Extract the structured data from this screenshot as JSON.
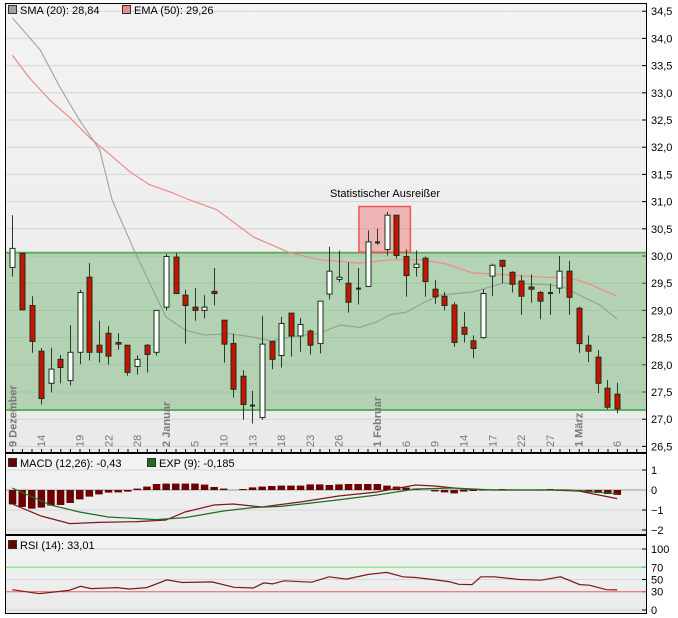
{
  "legend": {
    "sma": "SMA (20): 28,84",
    "ema": "EMA (50): 29,26",
    "macd": "MACD (12,26): -0,43",
    "exp": "EXP (9): -0,185",
    "rsi": "RSI (14): 33,01"
  },
  "colors": {
    "sma": "#a0a0a0",
    "ema": "#f08a8a",
    "band_fill": "#b3d3b3",
    "band_line": "#5fae5f",
    "up_body": "#ffffff",
    "down_body": "#cc1100",
    "candle_outline": "#143214",
    "macd": "#6b0000",
    "exp": "#1e6e1e",
    "rsi": "#6b0000",
    "rsi_upper": "#66ee66",
    "rsi_lower": "#ee6666",
    "outlier": "#f08080",
    "outlier_label": "#6b6bff"
  },
  "chart_data": [
    {
      "type": "candlestick",
      "ylim": [
        26.5,
        34.5
      ],
      "y_ticks": [
        "34,5",
        "34,0",
        "33,5",
        "33,0",
        "32,5",
        "32,0",
        "31,5",
        "31,0",
        "30,5",
        "30,0",
        "29,5",
        "29,0",
        "28,5",
        "28,0",
        "27,5",
        "27,0",
        "26,5"
      ],
      "y_tick_values": [
        34.5,
        34.0,
        33.5,
        33.0,
        32.5,
        32.0,
        31.5,
        31.0,
        30.5,
        30.0,
        29.5,
        29.0,
        28.5,
        28.0,
        27.5,
        27.0,
        26.5
      ],
      "grid": true,
      "x_labels": [
        {
          "label": "9 Dezember",
          "i": 0,
          "month": true
        },
        {
          "label": "14",
          "i": 3
        },
        {
          "label": "19",
          "i": 7
        },
        {
          "label": "22",
          "i": 10
        },
        {
          "label": "28",
          "i": 13
        },
        {
          "label": "2 Januar",
          "i": 16,
          "month": true
        },
        {
          "label": "5",
          "i": 19
        },
        {
          "label": "10",
          "i": 22
        },
        {
          "label": "13",
          "i": 25
        },
        {
          "label": "18",
          "i": 28
        },
        {
          "label": "23",
          "i": 31
        },
        {
          "label": "26",
          "i": 34
        },
        {
          "label": "1 Februar",
          "i": 38,
          "month": true
        },
        {
          "label": "6",
          "i": 41
        },
        {
          "label": "9",
          "i": 44
        },
        {
          "label": "14",
          "i": 47
        },
        {
          "label": "17",
          "i": 50
        },
        {
          "label": "22",
          "i": 53
        },
        {
          "label": "27",
          "i": 56
        },
        {
          "label": "1 März",
          "i": 59,
          "month": true
        },
        {
          "label": "6",
          "i": 63
        }
      ],
      "ohlc_fields": [
        "open",
        "high",
        "low",
        "close"
      ],
      "ohlc": [
        [
          29.79,
          30.75,
          29.62,
          30.14
        ],
        [
          30.05,
          30.06,
          29.0,
          29.01
        ],
        [
          29.09,
          29.26,
          28.22,
          28.43
        ],
        [
          28.25,
          28.31,
          27.27,
          27.38
        ],
        [
          27.66,
          28.31,
          27.49,
          27.92
        ],
        [
          28.1,
          28.18,
          27.66,
          27.95
        ],
        [
          27.71,
          28.73,
          27.62,
          28.23
        ],
        [
          28.23,
          29.38,
          28.01,
          29.33
        ],
        [
          29.61,
          29.87,
          28.08,
          28.23
        ],
        [
          28.36,
          28.81,
          28.04,
          28.23
        ],
        [
          28.58,
          28.71,
          28.0,
          28.16
        ],
        [
          28.41,
          28.58,
          28.28,
          28.38
        ],
        [
          28.36,
          28.36,
          27.8,
          27.86
        ],
        [
          27.97,
          28.17,
          27.82,
          28.1
        ],
        [
          28.36,
          28.38,
          27.86,
          28.19
        ],
        [
          28.23,
          29.01,
          28.17,
          29.0
        ],
        [
          29.06,
          30.04,
          29.0,
          29.99
        ],
        [
          29.98,
          30.06,
          29.31,
          29.31
        ],
        [
          29.28,
          29.38,
          28.39,
          29.09
        ],
        [
          29.06,
          29.41,
          28.81,
          29.0
        ],
        [
          29.0,
          29.28,
          28.85,
          29.06
        ],
        [
          29.35,
          29.78,
          29.09,
          29.31
        ],
        [
          28.82,
          28.82,
          28.04,
          28.38
        ],
        [
          28.39,
          28.57,
          27.4,
          27.55
        ],
        [
          27.79,
          27.9,
          26.99,
          27.27
        ],
        [
          27.26,
          27.52,
          26.92,
          27.25
        ],
        [
          27.03,
          28.9,
          26.99,
          28.38
        ],
        [
          28.43,
          28.44,
          27.92,
          28.1
        ],
        [
          28.17,
          28.88,
          27.95,
          28.76
        ],
        [
          28.95,
          28.95,
          28.15,
          28.53
        ],
        [
          28.53,
          28.86,
          28.24,
          28.74
        ],
        [
          28.62,
          28.65,
          28.19,
          28.36
        ],
        [
          28.39,
          29.17,
          28.21,
          29.17
        ],
        [
          29.3,
          30.17,
          29.2,
          29.72
        ],
        [
          29.57,
          30.1,
          29.52,
          29.61
        ],
        [
          29.5,
          29.88,
          28.96,
          29.15
        ],
        [
          29.41,
          29.78,
          29.11,
          29.4
        ],
        [
          29.44,
          30.47,
          29.44,
          30.26
        ],
        [
          30.24,
          30.5,
          30.21,
          30.26
        ],
        [
          30.12,
          30.81,
          30.01,
          30.75
        ],
        [
          30.75,
          30.75,
          29.95,
          30.01
        ],
        [
          29.99,
          30.12,
          29.25,
          29.64
        ],
        [
          29.79,
          30.1,
          29.62,
          29.85
        ],
        [
          29.96,
          29.99,
          29.25,
          29.53
        ],
        [
          29.39,
          29.56,
          29.12,
          29.25
        ],
        [
          29.26,
          29.34,
          29.0,
          29.09
        ],
        [
          29.1,
          29.15,
          28.33,
          28.41
        ],
        [
          28.69,
          28.97,
          28.41,
          28.56
        ],
        [
          28.44,
          28.54,
          28.12,
          28.3
        ],
        [
          28.5,
          29.39,
          28.48,
          29.31
        ],
        [
          29.63,
          29.86,
          29.26,
          29.83
        ],
        [
          29.92,
          29.93,
          29.5,
          29.81
        ],
        [
          29.7,
          29.72,
          29.33,
          29.48
        ],
        [
          29.54,
          29.65,
          28.92,
          29.26
        ],
        [
          29.43,
          29.66,
          29.14,
          29.39
        ],
        [
          29.33,
          29.36,
          28.84,
          29.17
        ],
        [
          29.33,
          29.49,
          28.92,
          29.31
        ],
        [
          29.41,
          30.0,
          29.31,
          29.72
        ],
        [
          29.72,
          29.91,
          28.92,
          29.24
        ],
        [
          29.04,
          29.07,
          28.22,
          28.39
        ],
        [
          28.36,
          28.54,
          28.05,
          28.25
        ],
        [
          28.14,
          28.27,
          27.48,
          27.66
        ],
        [
          27.57,
          27.72,
          27.18,
          27.22
        ],
        [
          27.46,
          27.67,
          27.11,
          27.19
        ]
      ],
      "sma": [
        [
          0,
          34.38
        ],
        [
          2.9,
          33.79
        ],
        [
          5,
          33.09
        ],
        [
          7,
          32.5
        ],
        [
          9.1,
          31.95
        ],
        [
          10.4,
          31.03
        ],
        [
          12.8,
          30.06
        ],
        [
          16,
          28.88
        ],
        [
          18,
          28.64
        ],
        [
          20,
          28.55
        ],
        [
          22.7,
          28.57
        ],
        [
          25.1,
          28.51
        ],
        [
          27,
          28.44
        ],
        [
          28.9,
          28.51
        ],
        [
          32,
          28.58
        ],
        [
          34.1,
          28.73
        ],
        [
          36.2,
          28.69
        ],
        [
          38,
          28.79
        ],
        [
          39.3,
          28.92
        ],
        [
          41.1,
          28.97
        ],
        [
          42.8,
          29.14
        ],
        [
          44.5,
          29.28
        ],
        [
          48,
          29.34
        ],
        [
          51.1,
          29.5
        ],
        [
          53.2,
          29.49
        ],
        [
          56,
          29.47
        ],
        [
          57.4,
          29.43
        ],
        [
          59.1,
          29.28
        ],
        [
          61.2,
          29.1
        ],
        [
          63,
          28.84
        ]
      ],
      "ema": [
        [
          0,
          33.69
        ],
        [
          1.8,
          33.27
        ],
        [
          3.9,
          32.87
        ],
        [
          6,
          32.54
        ],
        [
          8.1,
          32.17
        ],
        [
          10.2,
          31.86
        ],
        [
          12.3,
          31.54
        ],
        [
          14.3,
          31.31
        ],
        [
          16.4,
          31.18
        ],
        [
          18.5,
          31.03
        ],
        [
          21.3,
          30.85
        ],
        [
          25.1,
          30.35
        ],
        [
          28.9,
          30.06
        ],
        [
          32,
          29.93
        ],
        [
          36.2,
          29.87
        ],
        [
          39.3,
          29.93
        ],
        [
          42.5,
          29.93
        ],
        [
          44.9,
          29.87
        ],
        [
          48,
          29.69
        ],
        [
          51.8,
          29.65
        ],
        [
          55.3,
          29.61
        ],
        [
          58.1,
          29.6
        ],
        [
          59.9,
          29.5
        ],
        [
          63,
          29.26
        ]
      ],
      "band": {
        "upper": 30.06,
        "lower": 27.17
      },
      "outlier": {
        "label": "Statistischer Ausreißer",
        "from_i": 36,
        "to_i": 41,
        "upper": 30.91,
        "lower": 30.07
      }
    },
    {
      "type": "bar+line",
      "ylim": [
        -2.2,
        1.7
      ],
      "y_ticks": [
        "1",
        "0",
        "−1",
        "−2"
      ],
      "y_tick_values": [
        1,
        0,
        -1,
        -2
      ],
      "histogram": [
        -0.72,
        -0.85,
        -0.93,
        -0.88,
        -0.78,
        -0.75,
        -0.65,
        -0.47,
        -0.33,
        -0.22,
        -0.13,
        -0.12,
        -0.08,
        0.07,
        0.17,
        0.3,
        0.32,
        0.32,
        0.32,
        0.32,
        0.27,
        0.15,
        0.07,
        0,
        0.05,
        0.13,
        0.17,
        0.2,
        0.22,
        0.22,
        0.22,
        0.28,
        0.28,
        0.25,
        0.28,
        0.3,
        0.3,
        0.3,
        0.3,
        0.22,
        0.17,
        0.12,
        0.07,
        0,
        -0.07,
        -0.12,
        -0.17,
        -0.08,
        -0.05,
        -0.03,
        0.03,
        0.05,
        0.03,
        0.02,
        0.02,
        0.03,
        0.05,
        0.03,
        -0.03,
        -0.08,
        -0.12,
        -0.15,
        -0.2,
        -0.245
      ],
      "macd": [
        [
          0,
          -0.7
        ],
        [
          3,
          -1.3
        ],
        [
          6,
          -1.68
        ],
        [
          9,
          -1.62
        ],
        [
          13,
          -1.58
        ],
        [
          16,
          -1.5
        ],
        [
          18,
          -1.1
        ],
        [
          21,
          -0.75
        ],
        [
          23,
          -0.7
        ],
        [
          26,
          -0.85
        ],
        [
          30,
          -0.6
        ],
        [
          34,
          -0.3
        ],
        [
          38,
          -0.1
        ],
        [
          42,
          0.25
        ],
        [
          44,
          0.2
        ],
        [
          47,
          0.05
        ],
        [
          50,
          0
        ],
        [
          56,
          0
        ],
        [
          59,
          -0.05
        ],
        [
          63,
          -0.43
        ]
      ],
      "exp": [
        [
          0,
          0.1
        ],
        [
          4,
          -0.75
        ],
        [
          7,
          -1.1
        ],
        [
          10,
          -1.35
        ],
        [
          15,
          -1.48
        ],
        [
          18,
          -1.38
        ],
        [
          22,
          -1.05
        ],
        [
          25,
          -0.88
        ],
        [
          28,
          -0.82
        ],
        [
          33,
          -0.55
        ],
        [
          38,
          -0.25
        ],
        [
          42,
          0.05
        ],
        [
          46,
          0.1
        ],
        [
          50,
          0
        ],
        [
          58,
          0
        ],
        [
          63,
          -0.185
        ]
      ]
    },
    {
      "type": "line",
      "ylim": [
        0,
        115
      ],
      "y_ticks": [
        "100",
        "70",
        "50",
        "30",
        "0"
      ],
      "y_tick_values": [
        100,
        70,
        50,
        30,
        0
      ],
      "levels": [
        70,
        30
      ],
      "rsi": [
        [
          0,
          33.3
        ],
        [
          2.8,
          26.7
        ],
        [
          5.9,
          32.2
        ],
        [
          7.1,
          38.9
        ],
        [
          8.2,
          35
        ],
        [
          10.9,
          36.7
        ],
        [
          12.2,
          34.4
        ],
        [
          14,
          36.7
        ],
        [
          16.1,
          49.4
        ],
        [
          17.7,
          45
        ],
        [
          20.8,
          46.1
        ],
        [
          23.1,
          37.2
        ],
        [
          25.1,
          36.1
        ],
        [
          26.2,
          44.4
        ],
        [
          27.1,
          42.8
        ],
        [
          28.3,
          47.8
        ],
        [
          31.2,
          45.6
        ],
        [
          33,
          54.4
        ],
        [
          34.8,
          50.6
        ],
        [
          37.1,
          58.3
        ],
        [
          39,
          61.7
        ],
        [
          40.7,
          54.4
        ],
        [
          42,
          53.3
        ],
        [
          43.8,
          50
        ],
        [
          45.6,
          46.1
        ],
        [
          46.5,
          42.2
        ],
        [
          47.9,
          41.7
        ],
        [
          48.8,
          54.4
        ],
        [
          50.2,
          54.4
        ],
        [
          52.8,
          50
        ],
        [
          55.1,
          48.9
        ],
        [
          57.1,
          54.4
        ],
        [
          59.1,
          41.7
        ],
        [
          60.1,
          40.6
        ],
        [
          61.9,
          33.3
        ],
        [
          63,
          33.01
        ]
      ]
    }
  ]
}
